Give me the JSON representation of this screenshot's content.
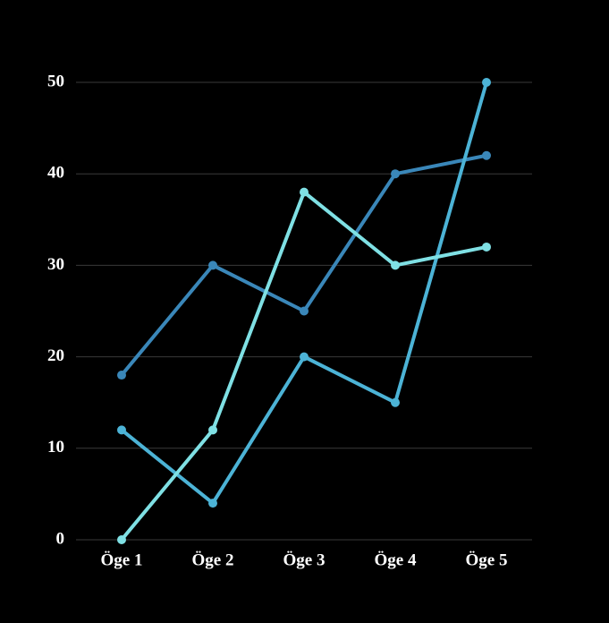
{
  "chart_data": {
    "type": "line",
    "categories": [
      "Öge 1",
      "Öge 2",
      "Öge 3",
      "Öge 4",
      "Öge 5"
    ],
    "series": [
      {
        "color": "#3a87b9",
        "values": [
          18,
          30,
          25,
          40,
          42
        ]
      },
      {
        "color": "#4cb3d6",
        "values": [
          12,
          4,
          20,
          15,
          50
        ]
      },
      {
        "color": "#7fe0e4",
        "values": [
          0,
          12,
          38,
          30,
          32
        ]
      }
    ],
    "ylim": [
      0,
      50
    ],
    "yticks": [
      0,
      10,
      20,
      30,
      40,
      50
    ],
    "grid": true
  }
}
